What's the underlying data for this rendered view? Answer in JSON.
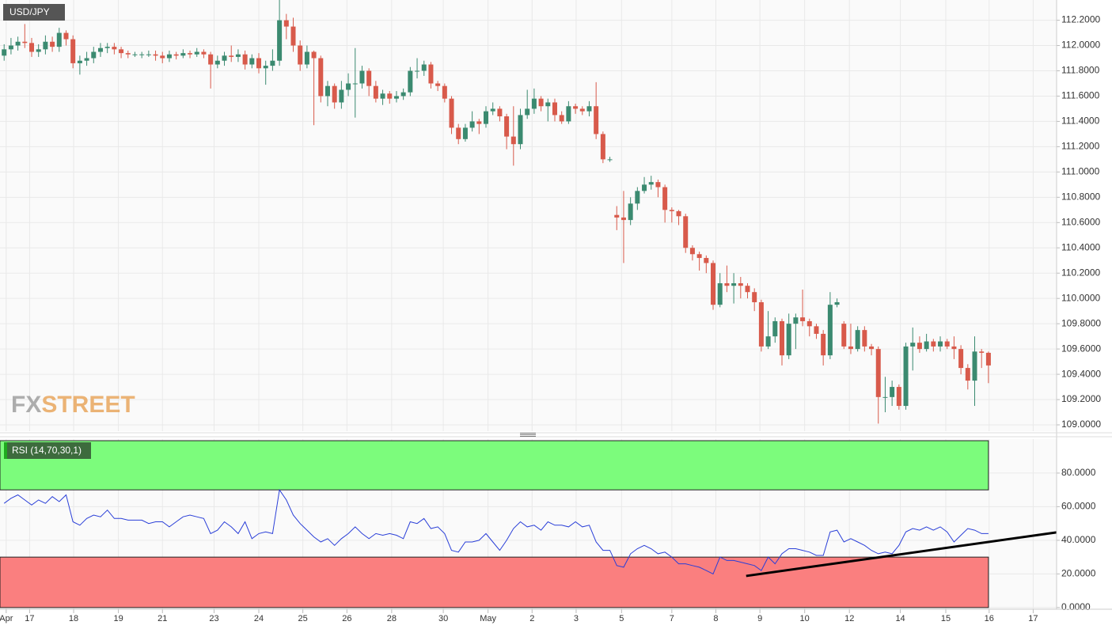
{
  "chart_data": [
    {
      "type": "candlestick",
      "title": "USD/JPY",
      "watermark": "FXSTREET",
      "up_color": "#3b8a70",
      "down_color": "#d85a4b",
      "open": [
        111.92,
        111.97,
        112.0,
        112.03,
        112.02,
        111.95,
        111.97,
        112.03,
        111.99,
        112.1,
        112.05,
        111.86,
        111.88,
        111.9,
        111.95,
        111.98,
        111.99,
        111.97,
        111.94,
        111.93,
        111.93,
        111.93,
        111.93,
        111.92,
        111.9,
        111.93,
        111.92,
        111.94,
        111.93,
        111.95,
        111.93,
        111.85,
        111.88,
        111.92,
        111.91,
        111.93,
        111.85,
        111.9,
        111.82,
        111.84,
        111.88,
        112.2,
        112.15,
        112.0,
        111.85,
        111.95,
        111.9,
        111.6,
        111.68,
        111.55,
        111.65,
        111.7,
        111.7,
        111.8,
        111.68,
        111.58,
        111.62,
        111.58,
        111.6,
        111.63,
        111.8,
        111.8,
        111.85,
        111.7,
        111.68,
        111.58,
        111.35,
        111.26,
        111.35,
        111.4,
        111.38,
        111.48,
        111.5,
        111.44,
        111.28,
        111.22,
        111.45,
        111.5,
        111.58,
        111.52,
        111.55,
        111.45,
        111.4,
        111.52,
        111.5,
        111.48,
        111.52,
        111.3,
        111.1,
        110.66,
        110.64,
        110.62,
        110.75,
        110.85,
        110.9,
        110.92,
        110.88,
        110.7,
        110.69,
        110.65,
        110.4,
        110.35,
        110.32,
        110.28,
        109.95,
        110.12,
        110.1,
        110.12,
        110.1,
        110.05,
        109.97,
        109.62,
        109.7,
        109.82,
        109.55,
        109.8,
        109.85,
        109.82,
        109.78,
        109.72,
        109.55,
        109.95,
        109.8,
        109.62,
        109.6,
        109.75,
        109.62,
        109.6,
        109.22,
        109.22,
        109.3,
        109.15,
        109.62,
        109.65,
        109.6,
        109.66,
        109.62,
        109.66,
        109.62,
        109.6,
        109.45,
        109.35,
        109.58,
        109.57
      ],
      "high": [
        112.01,
        112.06,
        112.07,
        112.17,
        112.06,
        112.01,
        112.08,
        112.07,
        112.14,
        112.12,
        112.08,
        111.92,
        111.95,
        111.99,
        112.02,
        112.02,
        112.02,
        111.99,
        111.96,
        111.95,
        111.95,
        111.96,
        111.96,
        111.95,
        111.96,
        111.95,
        111.97,
        111.96,
        111.98,
        111.97,
        111.95,
        111.92,
        111.95,
        112.0,
        111.97,
        111.96,
        111.93,
        111.94,
        111.88,
        111.97,
        112.36,
        112.25,
        112.22,
        112.04,
        112.0,
        111.96,
        111.92,
        111.72,
        111.7,
        111.72,
        111.78,
        111.98,
        111.84,
        111.82,
        111.72,
        111.65,
        111.64,
        111.64,
        111.66,
        111.83,
        111.9,
        111.88,
        111.87,
        111.72,
        111.7,
        111.6,
        111.38,
        111.38,
        111.48,
        111.42,
        111.52,
        111.55,
        111.52,
        111.46,
        111.52,
        111.5,
        111.65,
        111.66,
        111.6,
        111.58,
        111.58,
        111.48,
        111.56,
        111.54,
        111.52,
        111.56,
        111.71,
        111.32,
        111.12,
        110.73,
        110.85,
        110.8,
        110.88,
        110.96,
        110.97,
        110.94,
        110.9,
        110.72,
        110.7,
        110.67,
        110.42,
        110.37,
        110.34,
        110.3,
        110.2,
        110.26,
        110.2,
        110.17,
        110.12,
        110.08,
        109.99,
        109.9,
        109.85,
        109.84,
        109.88,
        109.88,
        110.07,
        109.84,
        109.8,
        109.75,
        110.05,
        110.0,
        109.82,
        109.8,
        109.78,
        109.78,
        109.64,
        109.62,
        109.38,
        109.35,
        109.32,
        109.65,
        109.77,
        109.7,
        109.72,
        109.68,
        109.7,
        109.68,
        109.7,
        109.63,
        109.48,
        109.7,
        109.6,
        109.58
      ],
      "low": [
        111.88,
        111.93,
        111.96,
        111.98,
        111.91,
        111.91,
        111.93,
        111.95,
        111.95,
        112.0,
        111.82,
        111.77,
        111.84,
        111.86,
        111.91,
        111.94,
        111.93,
        111.9,
        111.9,
        111.91,
        111.9,
        111.91,
        111.88,
        111.86,
        111.87,
        111.89,
        111.9,
        111.9,
        111.91,
        111.9,
        111.66,
        111.82,
        111.84,
        111.87,
        111.87,
        111.81,
        111.82,
        111.78,
        111.69,
        111.8,
        111.84,
        112.05,
        111.95,
        111.8,
        111.82,
        111.37,
        111.55,
        111.52,
        111.5,
        111.5,
        111.6,
        111.43,
        111.66,
        111.6,
        111.55,
        111.53,
        111.54,
        111.55,
        111.57,
        111.6,
        111.74,
        111.76,
        111.66,
        111.64,
        111.55,
        111.3,
        111.22,
        111.24,
        111.32,
        111.3,
        111.35,
        111.45,
        111.4,
        111.18,
        111.05,
        111.18,
        111.42,
        111.46,
        111.48,
        111.4,
        111.4,
        111.38,
        111.38,
        111.46,
        111.45,
        111.44,
        111.26,
        111.07,
        111.08,
        110.54,
        110.28,
        110.58,
        110.7,
        110.83,
        110.86,
        110.8,
        110.6,
        110.6,
        110.58,
        110.36,
        110.3,
        110.22,
        110.2,
        109.91,
        109.93,
        110.05,
        109.96,
        110.0,
        110.0,
        109.9,
        109.58,
        109.6,
        109.65,
        109.47,
        109.52,
        109.6,
        109.78,
        109.7,
        109.68,
        109.47,
        109.52,
        109.93,
        109.6,
        109.56,
        109.58,
        109.58,
        109.55,
        109.01,
        109.1,
        109.15,
        109.12,
        109.12,
        109.43,
        109.57,
        109.58,
        109.58,
        109.58,
        109.6,
        109.52,
        109.4,
        109.28,
        109.15,
        109.45,
        109.33
      ],
      "close": [
        111.97,
        112.0,
        112.03,
        112.02,
        111.95,
        111.97,
        112.03,
        111.99,
        112.1,
        112.05,
        111.86,
        111.88,
        111.9,
        111.95,
        111.98,
        111.99,
        111.97,
        111.94,
        111.93,
        111.93,
        111.93,
        111.93,
        111.92,
        111.9,
        111.93,
        111.92,
        111.94,
        111.93,
        111.95,
        111.93,
        111.85,
        111.88,
        111.92,
        111.91,
        111.93,
        111.85,
        111.9,
        111.82,
        111.84,
        111.88,
        112.2,
        112.15,
        112.0,
        111.85,
        111.95,
        111.9,
        111.6,
        111.68,
        111.55,
        111.65,
        111.7,
        111.7,
        111.8,
        111.68,
        111.58,
        111.62,
        111.58,
        111.6,
        111.63,
        111.8,
        111.8,
        111.85,
        111.7,
        111.68,
        111.58,
        111.35,
        111.26,
        111.35,
        111.4,
        111.38,
        111.48,
        111.5,
        111.44,
        111.28,
        111.22,
        111.45,
        111.5,
        111.58,
        111.52,
        111.55,
        111.45,
        111.4,
        111.52,
        111.5,
        111.48,
        111.52,
        111.3,
        111.1,
        111.1,
        110.64,
        110.62,
        110.75,
        110.85,
        110.9,
        110.92,
        110.88,
        110.7,
        110.69,
        110.65,
        110.4,
        110.35,
        110.32,
        110.28,
        109.95,
        110.12,
        110.1,
        110.12,
        110.1,
        110.05,
        109.97,
        109.62,
        109.7,
        109.82,
        109.55,
        109.8,
        109.85,
        109.82,
        109.78,
        109.72,
        109.55,
        109.95,
        109.97,
        109.62,
        109.6,
        109.75,
        109.62,
        109.6,
        109.22,
        109.22,
        109.3,
        109.15,
        109.62,
        109.65,
        109.6,
        109.66,
        109.62,
        109.66,
        109.62,
        109.6,
        109.45,
        109.35,
        109.58,
        109.57,
        109.47
      ],
      "xlim": [
        -0.6,
        152.9
      ],
      "ylim": [
        108.95,
        112.36
      ],
      "grid": true,
      "yticks": [
        {
          "value": 109.0,
          "label": "109.0000"
        },
        {
          "value": 109.2,
          "label": "109.2000"
        },
        {
          "value": 109.4,
          "label": "109.4000"
        },
        {
          "value": 109.6,
          "label": "109.6000"
        },
        {
          "value": 109.8,
          "label": "109.8000"
        },
        {
          "value": 110.0,
          "label": "110.0000"
        },
        {
          "value": 110.2,
          "label": "110.2000"
        },
        {
          "value": 110.4,
          "label": "110.4000"
        },
        {
          "value": 110.6,
          "label": "110.6000"
        },
        {
          "value": 110.8,
          "label": "110.8000"
        },
        {
          "value": 111.0,
          "label": "111.0000"
        },
        {
          "value": 111.2,
          "label": "111.2000"
        },
        {
          "value": 111.4,
          "label": "111.4000"
        },
        {
          "value": 111.6,
          "label": "111.6000"
        },
        {
          "value": 111.8,
          "label": "111.8000"
        },
        {
          "value": 112.0,
          "label": "112.0000"
        },
        {
          "value": 112.2,
          "label": "112.2000"
        }
      ]
    },
    {
      "type": "line",
      "title": "RSI (14,70,30,1)",
      "color": "#2a3fd8",
      "values": [
        62,
        65,
        67,
        64,
        61,
        64,
        62,
        66,
        63,
        67,
        51,
        49,
        53,
        55,
        54,
        58,
        53,
        53,
        52,
        52,
        52,
        50,
        51,
        51,
        48,
        51,
        54,
        55,
        54,
        53,
        44,
        46,
        51,
        48,
        44,
        51,
        41,
        44,
        45,
        44,
        70,
        64,
        55,
        50,
        46,
        42,
        39,
        41,
        37,
        41,
        44,
        48,
        44,
        41,
        44,
        43,
        44,
        43,
        41,
        51,
        50,
        53,
        47,
        48,
        44,
        34,
        33,
        39,
        39,
        40,
        44,
        39,
        34,
        40,
        47,
        51,
        48,
        49,
        46,
        51,
        49,
        49,
        48,
        51,
        48,
        49,
        39,
        34,
        34,
        25,
        24,
        32,
        35,
        37,
        35,
        32,
        33,
        30,
        26,
        26,
        25,
        24,
        22,
        20,
        30,
        28,
        28,
        27,
        26,
        25,
        22,
        30,
        26,
        32,
        35,
        35,
        34,
        33,
        31,
        31,
        45,
        46,
        39,
        41,
        39,
        37,
        34,
        32,
        33,
        32,
        37,
        45,
        47,
        46,
        48,
        46,
        48,
        45,
        39,
        43,
        47,
        46,
        44,
        44
      ],
      "overbought": 70,
      "oversold": 30,
      "overbought_color": "#7cfc7c",
      "oversold_color": "#fa7f7f",
      "trendline": {
        "x": [
          107.8,
          152.9
        ],
        "y": [
          18.8,
          44.7
        ],
        "color": "#000000"
      },
      "xlim": [
        -0.6,
        152.9
      ],
      "ylim": [
        -1,
        100.2
      ],
      "grid": true,
      "yticks": [
        {
          "value": 0,
          "label": "0.0000"
        },
        {
          "value": 20,
          "label": "20.0000"
        },
        {
          "value": 40,
          "label": "40.0000"
        },
        {
          "value": 60,
          "label": "60.0000"
        },
        {
          "value": 80,
          "label": "80.0000"
        }
      ],
      "xticks": [
        {
          "value": 0.3,
          "label": "Apr"
        },
        {
          "value": 3.7,
          "label": "17"
        },
        {
          "value": 10.1,
          "label": "18"
        },
        {
          "value": 16.6,
          "label": "19"
        },
        {
          "value": 23.0,
          "label": "21"
        },
        {
          "value": 30.5,
          "label": "23"
        },
        {
          "value": 37.0,
          "label": "24"
        },
        {
          "value": 43.4,
          "label": "25"
        },
        {
          "value": 49.8,
          "label": "26"
        },
        {
          "value": 56.3,
          "label": "28"
        },
        {
          "value": 63.8,
          "label": "30"
        },
        {
          "value": 70.3,
          "label": "May"
        },
        {
          "value": 76.7,
          "label": "2"
        },
        {
          "value": 83.1,
          "label": "3"
        },
        {
          "value": 89.7,
          "label": "5"
        },
        {
          "value": 97.0,
          "label": "7"
        },
        {
          "value": 103.4,
          "label": "8"
        },
        {
          "value": 109.8,
          "label": "9"
        },
        {
          "value": 116.3,
          "label": "10"
        },
        {
          "value": 122.8,
          "label": "12"
        },
        {
          "value": 130.2,
          "label": "14"
        },
        {
          "value": 136.8,
          "label": "15"
        },
        {
          "value": 143.1,
          "label": "16"
        },
        {
          "value": 149.5,
          "label": "17"
        }
      ]
    }
  ]
}
